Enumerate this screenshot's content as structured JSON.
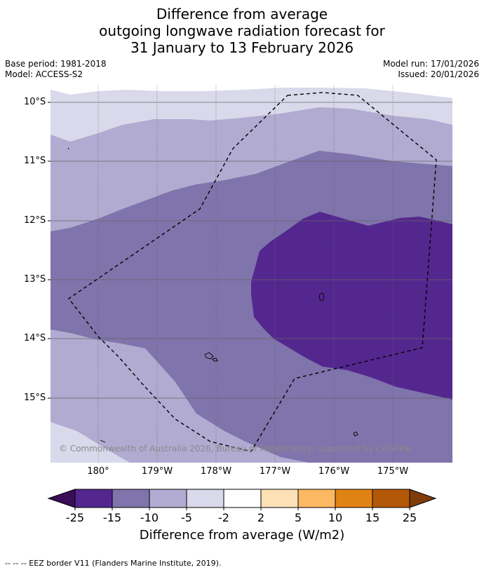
{
  "title": {
    "line1": "Difference from average",
    "line2": "outgoing longwave radiation forecast for",
    "line3": "31 January to 13 February 2026"
  },
  "meta": {
    "base_period": "Base period: 1981-2018",
    "model": "Model: ACCESS-S2",
    "model_run": "Model run: 17/01/2026",
    "issued": "Issued: 20/01/2026"
  },
  "axes": {
    "lat_labels": [
      "10°S",
      "11°S",
      "12°S",
      "13°S",
      "14°S",
      "15°S"
    ],
    "lon_labels": [
      "180°",
      "179°W",
      "178°W",
      "177°W",
      "176°W",
      "175°W"
    ]
  },
  "copyright": "© Commonwealth of Australia 2026, Bureau of Meteorology, supported by COSPPac",
  "colorbar": {
    "ticks": [
      "-25",
      "-15",
      "-10",
      "-5",
      "-2",
      "2",
      "5",
      "10",
      "15",
      "25"
    ],
    "label": "Difference from average (W/m2)",
    "colors": {
      "below": "#3b0d57",
      "c1": "#54278f",
      "c2": "#7f74ab",
      "c3": "#b1abd1",
      "c4": "#d9d9eb",
      "c5": "#ffffff",
      "c6": "#fee0b6",
      "c7": "#fdb863",
      "c8": "#e08214",
      "c9": "#b35806",
      "above": "#7f3b08"
    }
  },
  "footnote": "--  --  -- EEZ border V11 (Flanders Marine Institute, 2019)."
}
